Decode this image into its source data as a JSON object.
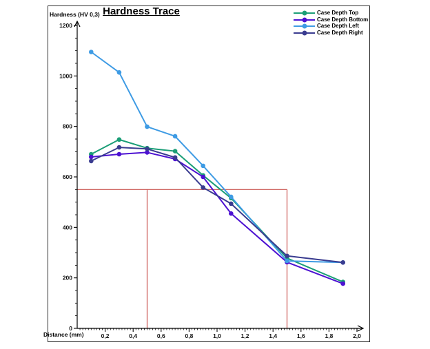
{
  "chart_data": {
    "type": "line",
    "title": "Hardness Trace",
    "xlabel": "Distance (mm)",
    "ylabel": "Hardness (HV 0,3)",
    "xlim": [
      0,
      2.0
    ],
    "ylim": [
      0,
      1200
    ],
    "x_major_step": 0.2,
    "x_minor_step": 0.02,
    "y_major_step": 200,
    "y_minor_step": 50,
    "decimal_separator": ",",
    "grid": false,
    "legend_position": "top-right",
    "axis_color": "#000000",
    "x": [
      0.1,
      0.3,
      0.5,
      0.7,
      0.9,
      1.1,
      1.5,
      1.9
    ],
    "series": [
      {
        "name": "Case Depth Top",
        "color": "#1B9E77",
        "values": [
          690,
          748,
          714,
          702,
          606,
          516,
          278,
          184
        ]
      },
      {
        "name": "Case Depth Bottom",
        "color": "#4D11D2",
        "values": [
          679,
          690,
          697,
          671,
          600,
          455,
          262,
          177
        ]
      },
      {
        "name": "Case Depth Left",
        "color": "#3E9BE4",
        "values": [
          1095,
          1014,
          799,
          761,
          644,
          521,
          267,
          261
        ]
      },
      {
        "name": "Case Depth Right",
        "color": "#3A3C90",
        "values": [
          663,
          717,
          711,
          677,
          558,
          494,
          287,
          261
        ]
      }
    ],
    "annotations": {
      "limit_value": 550,
      "limit_x_start": 0.5,
      "limit_x_end": 1.5,
      "limit_line_x_from": 0,
      "limit_color": "#C9524E"
    }
  }
}
